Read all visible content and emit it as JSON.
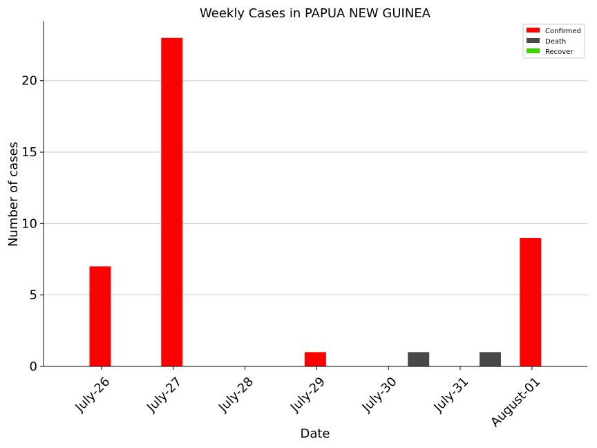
{
  "chart_data": {
    "type": "bar",
    "title": "Weekly Cases in PAPUA NEW GUINEA",
    "xlabel": "Date",
    "ylabel": "Number of cases",
    "categories": [
      "July-26",
      "July-27",
      "July-28",
      "July-29",
      "July-30",
      "July-31",
      "August-01"
    ],
    "series": [
      {
        "name": "Confirmed",
        "color": "#ff0000",
        "values": [
          7,
          23,
          0,
          1,
          0,
          0,
          9
        ]
      },
      {
        "name": "Death",
        "color": "#484848",
        "values": [
          0,
          0,
          0,
          0,
          1,
          1,
          0
        ]
      },
      {
        "name": "Recover",
        "color": "#3fd400",
        "values": [
          0,
          0,
          0,
          0,
          0,
          0,
          0
        ]
      }
    ],
    "ylim": [
      0,
      24.15
    ],
    "yticks": [
      0,
      5,
      10,
      15,
      20
    ],
    "grid": "y",
    "legend_position": "top-right"
  }
}
